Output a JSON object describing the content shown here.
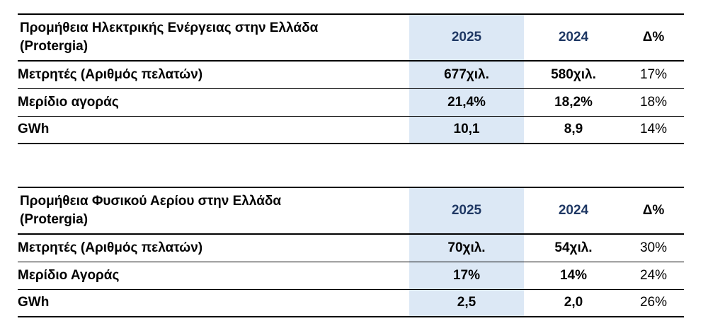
{
  "colors": {
    "year_text": "#1F3864",
    "highlight_bg": "#DCE8F5",
    "line": "#000000",
    "text": "#000000"
  },
  "tables": [
    {
      "title": "Προμήθεια Ηλεκτρικής Ενέργειας στην Ελλάδα (Protergia)",
      "columns": [
        "2025",
        "2024",
        "Δ%"
      ],
      "rows": [
        {
          "label": "Μετρητές (Αριθμός πελατών)",
          "y2025": "677χιλ.",
          "y2024": "580χιλ.",
          "delta": "17%"
        },
        {
          "label": "Μερίδιο αγοράς",
          "y2025": "21,4%",
          "y2024": "18,2%",
          "delta": "18%"
        },
        {
          "label": "GWh",
          "y2025": "10,1",
          "y2024": "8,9",
          "delta": "14%"
        }
      ]
    },
    {
      "title": "Προμήθεια Φυσικού Αερίου στην Ελλάδα (Protergia)",
      "columns": [
        "2025",
        "2024",
        "Δ%"
      ],
      "rows": [
        {
          "label": "Μετρητές (Αριθμός πελατών)",
          "y2025": "70χιλ.",
          "y2024": "54χιλ.",
          "delta": "30%"
        },
        {
          "label": "Μερίδιο Αγοράς",
          "y2025": "17%",
          "y2024": "14%",
          "delta": "24%"
        },
        {
          "label": "GWh",
          "y2025": "2,5",
          "y2024": "2,0",
          "delta": "26%"
        }
      ]
    }
  ]
}
